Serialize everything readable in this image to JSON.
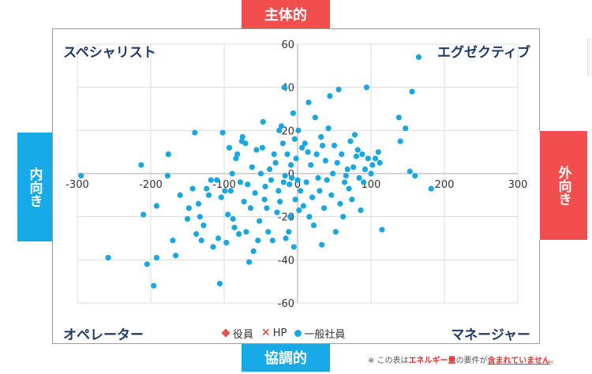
{
  "colors": {
    "red": "#f24e4e",
    "blue": "#16aae8",
    "navy": "#1f3a68",
    "point": "#1aa7e0",
    "grid": "#dcdcdc"
  },
  "labels": {
    "top": "主体的",
    "bottom": "協調的",
    "left": "内向き",
    "right": "外向き",
    "q_tl": "スペシャリスト",
    "q_tr": "エグゼクティブ",
    "q_bl": "オペレーター",
    "q_br": "マネージャー"
  },
  "note": {
    "prefix": "※ この表は",
    "part1": "エネルギー量",
    "mid": "の要件が",
    "part2": "含まれていません",
    "suffix": "。"
  },
  "chart_data": {
    "type": "scatter",
    "title": "",
    "xlabel": "",
    "ylabel": "",
    "xlim": [
      -300,
      300
    ],
    "ylim": [
      -60,
      60
    ],
    "x_ticks": [
      "-300",
      "-200",
      "-100",
      "0",
      "100",
      "200",
      "300"
    ],
    "y_ticks": [
      "60",
      "40",
      "20",
      "0",
      "-20",
      "-40",
      "-60"
    ],
    "grid": true,
    "legend_position": "bottom",
    "series": [
      {
        "name": "役員",
        "marker": "diamond",
        "color": "#e8534d",
        "points": []
      },
      {
        "name": "HP",
        "marker": "x",
        "color": "#e8302b",
        "points": []
      },
      {
        "name": "一般社員",
        "marker": "circle",
        "color": "#1aa7e0",
        "points": [
          [
            -295,
            -1
          ],
          [
            -258,
            -39
          ],
          [
            -213,
            4
          ],
          [
            -210,
            -19
          ],
          [
            -205,
            -42
          ],
          [
            -196,
            -52
          ],
          [
            -192,
            -39
          ],
          [
            -192,
            -15
          ],
          [
            -177,
            -1
          ],
          [
            -176,
            9
          ],
          [
            -170,
            -31
          ],
          [
            -166,
            -38
          ],
          [
            -160,
            -10
          ],
          [
            -150,
            -21
          ],
          [
            -148,
            -16
          ],
          [
            -143,
            -7
          ],
          [
            -140,
            19
          ],
          [
            -138,
            -28
          ],
          [
            -135,
            -14
          ],
          [
            -133,
            -20
          ],
          [
            -131,
            -31
          ],
          [
            -128,
            -24
          ],
          [
            -124,
            -7
          ],
          [
            -121,
            -10
          ],
          [
            -118,
            -3
          ],
          [
            -115,
            -34
          ],
          [
            -110,
            -3
          ],
          [
            -108,
            -30
          ],
          [
            -106,
            -51
          ],
          [
            -104,
            -11
          ],
          [
            -102,
            19
          ],
          [
            -99,
            -8
          ],
          [
            -97,
            -32
          ],
          [
            -95,
            -19
          ],
          [
            -93,
            12
          ],
          [
            -91,
            -8
          ],
          [
            -89,
            0
          ],
          [
            -88,
            -21
          ],
          [
            -86,
            -25
          ],
          [
            -84,
            7
          ],
          [
            -82,
            9
          ],
          [
            -80,
            -28
          ],
          [
            -78,
            -4
          ],
          [
            -76,
            15
          ],
          [
            -75,
            17
          ],
          [
            -73,
            -13
          ],
          [
            -71,
            14
          ],
          [
            -70,
            -27
          ],
          [
            -68,
            -5
          ],
          [
            -66,
            -41
          ],
          [
            -64,
            -16
          ],
          [
            -62,
            3
          ],
          [
            -60,
            -36
          ],
          [
            -58,
            -9
          ],
          [
            -56,
            11
          ],
          [
            -54,
            -31
          ],
          [
            -52,
            -22
          ],
          [
            -50,
            0
          ],
          [
            -48,
            12
          ],
          [
            -47,
            24
          ],
          [
            -45,
            -12
          ],
          [
            -44,
            -6
          ],
          [
            -42,
            -16
          ],
          [
            -40,
            -27
          ],
          [
            -38,
            2
          ],
          [
            -36,
            -3
          ],
          [
            -34,
            -31
          ],
          [
            -32,
            9
          ],
          [
            -30,
            5
          ],
          [
            -28,
            -18
          ],
          [
            -26,
            -8
          ],
          [
            -25,
            20
          ],
          [
            -24,
            -13
          ],
          [
            -22,
            22
          ],
          [
            -20,
            14
          ],
          [
            -19,
            -4
          ],
          [
            -18,
            40
          ],
          [
            -17,
            -1
          ],
          [
            -16,
            -30
          ],
          [
            -14,
            9
          ],
          [
            -12,
            -27
          ],
          [
            -11,
            -5
          ],
          [
            -10,
            -20
          ],
          [
            -9,
            4
          ],
          [
            -8,
            -2
          ],
          [
            -6,
            28
          ],
          [
            -5,
            -34
          ],
          [
            -4,
            16
          ],
          [
            -3,
            -12
          ],
          [
            -2,
            7
          ],
          [
            0,
            -3
          ],
          [
            1,
            20
          ],
          [
            2,
            -17
          ],
          [
            4,
            -8
          ],
          [
            6,
            12
          ],
          [
            8,
            -15
          ],
          [
            10,
            14
          ],
          [
            12,
            -4
          ],
          [
            14,
            10
          ],
          [
            15,
            33
          ],
          [
            16,
            -20
          ],
          [
            18,
            4
          ],
          [
            20,
            -11
          ],
          [
            22,
            -24
          ],
          [
            24,
            26
          ],
          [
            26,
            9
          ],
          [
            28,
            -2
          ],
          [
            30,
            -8
          ],
          [
            32,
            17
          ],
          [
            33,
            -33
          ],
          [
            34,
            13
          ],
          [
            36,
            -16
          ],
          [
            38,
            6
          ],
          [
            40,
            -3
          ],
          [
            42,
            21
          ],
          [
            44,
            36
          ],
          [
            46,
            -10
          ],
          [
            48,
            0
          ],
          [
            50,
            13
          ],
          [
            52,
            -27
          ],
          [
            54,
            5
          ],
          [
            56,
            39
          ],
          [
            58,
            -14
          ],
          [
            60,
            9
          ],
          [
            62,
            -20
          ],
          [
            64,
            -4
          ],
          [
            66,
            -1
          ],
          [
            68,
            2
          ],
          [
            70,
            -7
          ],
          [
            72,
            15
          ],
          [
            74,
            -12
          ],
          [
            76,
            3
          ],
          [
            78,
            18
          ],
          [
            80,
            8
          ],
          [
            82,
            11
          ],
          [
            84,
            -2
          ],
          [
            86,
            -17
          ],
          [
            88,
            9
          ],
          [
            90,
            -4
          ],
          [
            92,
            2
          ],
          [
            94,
            40
          ],
          [
            96,
            7
          ],
          [
            100,
            0
          ],
          [
            102,
            4
          ],
          [
            106,
            7
          ],
          [
            110,
            10
          ],
          [
            112,
            5
          ],
          [
            115,
            -26
          ],
          [
            138,
            26
          ],
          [
            140,
            15
          ],
          [
            147,
            21
          ],
          [
            153,
            1
          ],
          [
            156,
            38
          ],
          [
            160,
            -1
          ],
          [
            165,
            54
          ],
          [
            182,
            -7
          ]
        ]
      }
    ]
  }
}
